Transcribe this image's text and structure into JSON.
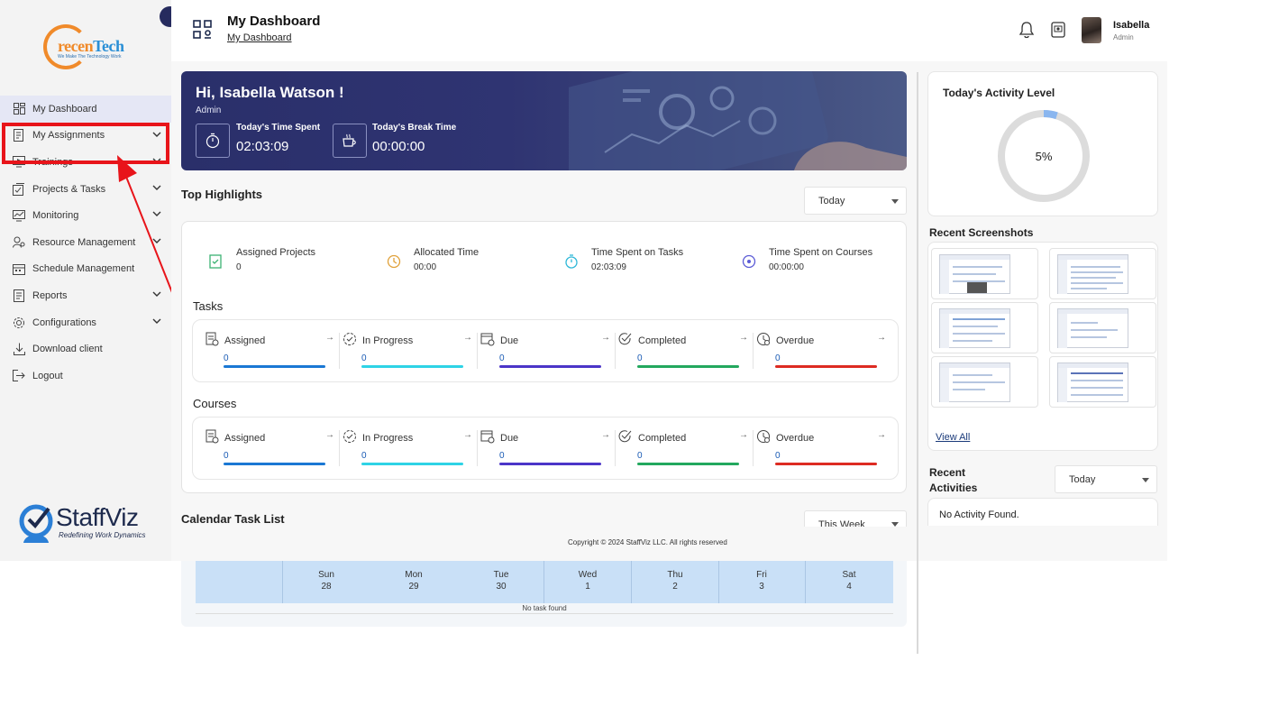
{
  "brand": {
    "logo_main": "recen",
    "logo_accent": "Tech",
    "logo_c": "c",
    "logo_tagline": "We Make The Technology Work"
  },
  "footer_brand": {
    "name": "StaffViz",
    "tagline": "Redefining Work Dynamics"
  },
  "sidebar": {
    "items": [
      {
        "label": "My Dashboard",
        "icon": "dashboard-icon",
        "has_chevron": false
      },
      {
        "label": "My Assignments",
        "icon": "assignments-icon",
        "has_chevron": true
      },
      {
        "label": "Trainings",
        "icon": "trainings-icon",
        "has_chevron": true
      },
      {
        "label": "Projects & Tasks",
        "icon": "projects-icon",
        "has_chevron": true
      },
      {
        "label": "Monitoring",
        "icon": "monitoring-icon",
        "has_chevron": true
      },
      {
        "label": "Resource Management",
        "icon": "resource-icon",
        "has_chevron": true
      },
      {
        "label": "Schedule Management",
        "icon": "schedule-icon",
        "has_chevron": false
      },
      {
        "label": "Reports",
        "icon": "reports-icon",
        "has_chevron": true
      },
      {
        "label": "Configurations",
        "icon": "configurations-icon",
        "has_chevron": true
      },
      {
        "label": "Download client",
        "icon": "download-icon",
        "has_chevron": false
      },
      {
        "label": "Logout",
        "icon": "logout-icon",
        "has_chevron": false
      }
    ]
  },
  "header": {
    "title": "My Dashboard",
    "breadcrumb": "My Dashboard",
    "user_name": "Isabella",
    "user_role": "Admin"
  },
  "banner": {
    "greeting": "Hi, Isabella Watson !",
    "role": "Admin",
    "time_spent_label": "Today's Time Spent",
    "time_spent_value": "02:03:09",
    "break_label": "Today's Break Time",
    "break_value": "00:00:00"
  },
  "highlights": {
    "title": "Top Highlights",
    "filter": "Today",
    "cards": [
      {
        "label": "Assigned Projects",
        "value": "0",
        "color": "#d7f3e3",
        "icon_color": "#3bb273"
      },
      {
        "label": "Allocated Time",
        "value": "00:00",
        "color": "#fdf0d9",
        "icon_color": "#e0a13a"
      },
      {
        "label": "Time Spent on Tasks",
        "value": "02:03:09",
        "color": "#d3f2fa",
        "icon_color": "#2fb8d8"
      },
      {
        "label": "Time Spent on Courses",
        "value": "00:00:00",
        "color": "#e3e3fb",
        "icon_color": "#5b5bd6"
      }
    ]
  },
  "tasks": {
    "title": "Tasks",
    "tiles": [
      {
        "label": "Assigned",
        "value": "0",
        "color": "#1a78d4"
      },
      {
        "label": "In Progress",
        "value": "0",
        "color": "#2ed3e6"
      },
      {
        "label": "Due",
        "value": "0",
        "color": "#4b35c8"
      },
      {
        "label": "Completed",
        "value": "0",
        "color": "#23a85e"
      },
      {
        "label": "Overdue",
        "value": "0",
        "color": "#dd2b22"
      }
    ]
  },
  "courses": {
    "title": "Courses",
    "tiles": [
      {
        "label": "Assigned",
        "value": "0",
        "color": "#1a78d4"
      },
      {
        "label": "In Progress",
        "value": "0",
        "color": "#2ed3e6"
      },
      {
        "label": "Due",
        "value": "0",
        "color": "#4b35c8"
      },
      {
        "label": "Completed",
        "value": "0",
        "color": "#23a85e"
      },
      {
        "label": "Overdue",
        "value": "0",
        "color": "#dd2b22"
      }
    ]
  },
  "calendar": {
    "title": "Calendar Task List",
    "filter": "This Week",
    "days": [
      {
        "name": "",
        "date": ""
      },
      {
        "name": "Sun",
        "date": "28"
      },
      {
        "name": "Mon",
        "date": "29"
      },
      {
        "name": "Tue",
        "date": "30"
      },
      {
        "name": "Wed",
        "date": "1"
      },
      {
        "name": "Thu",
        "date": "2"
      },
      {
        "name": "Fri",
        "date": "3"
      },
      {
        "name": "Sat",
        "date": "4"
      }
    ],
    "empty_text": "No task found"
  },
  "activity": {
    "title": "Today's Activity Level",
    "percent_label": "5%",
    "percent": 5
  },
  "screenshots": {
    "title": "Recent Screenshots",
    "view_all": "View All",
    "count": 6
  },
  "recent_activities": {
    "title_line1": "Recent",
    "title_line2": "Activities",
    "filter": "Today",
    "empty_text": "No Activity Found."
  },
  "footer": {
    "copyright": "Copyright © 2024 StaffViz LLC. All rights reserved"
  }
}
